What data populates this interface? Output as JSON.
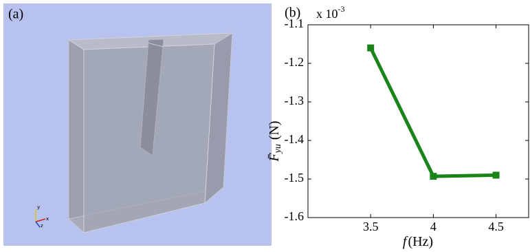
{
  "panel_a": {
    "label": "(a)",
    "triad": [
      "y",
      "x",
      "z"
    ]
  },
  "chart_data": {
    "type": "line",
    "label": "(b)",
    "multiplier": {
      "base": "x 10",
      "exponent": "-3"
    },
    "xlabel": {
      "symbol": "f",
      "unit": "(Hz)"
    },
    "ylabel": {
      "symbol": "F̄",
      "subscript": "yu",
      "unit": "(N)"
    },
    "x": [
      3.5,
      4,
      4.5
    ],
    "series": [
      {
        "color": "#1a841a",
        "values": [
          -1.16,
          -1.493,
          -1.49
        ]
      }
    ],
    "xlim": [
      3,
      4.76
    ],
    "xticks": [
      3.5,
      4,
      4.5
    ],
    "ylim": [
      -1.6,
      -1.1
    ],
    "yticks": [
      -1.6,
      -1.5,
      -1.4,
      -1.3,
      -1.2,
      -1.1
    ]
  }
}
